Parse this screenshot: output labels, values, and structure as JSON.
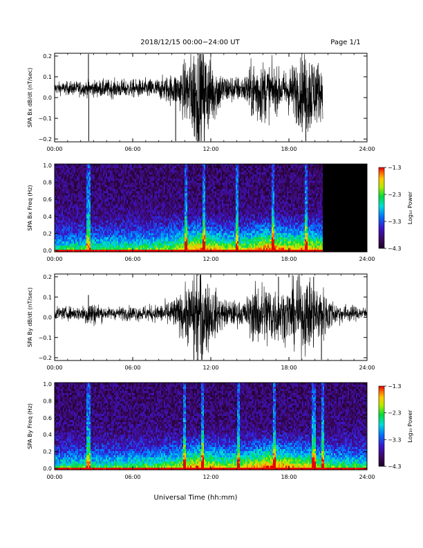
{
  "header": {
    "title": "2018/12/15  00:00−24:00 UT",
    "page": "Page 1/1"
  },
  "xlabel": "Universal Time (hh:mm)",
  "colorbar_label": "Log₁₀ Power",
  "colorbar_ticks": [
    "−1.3",
    "−2.3",
    "−3.3",
    "−4.3"
  ],
  "colors": {
    "background": "#ffffff",
    "trace": "#000000",
    "no_data": "#000000"
  },
  "chart_data": [
    {
      "type": "line",
      "ylabel": "SPA Bx dB/dt (nT/sec)",
      "x_ticks": [
        "00:00",
        "06:00",
        "12:00",
        "18:00",
        "24:00"
      ],
      "y_ticks": [
        "0.2",
        "0.1",
        "0.0",
        "−0.1",
        "−0.2"
      ],
      "xlim": [
        0,
        24
      ],
      "ylim": [
        -0.2,
        0.2
      ],
      "data_end_hour": 20.6,
      "baseline": 0.045,
      "activity": [
        {
          "h": 0,
          "a": 0.02
        },
        {
          "h": 2,
          "a": 0.025
        },
        {
          "h": 4,
          "a": 0.03
        },
        {
          "h": 6,
          "a": 0.03
        },
        {
          "h": 8,
          "a": 0.035
        },
        {
          "h": 9.5,
          "a": 0.06
        },
        {
          "h": 10,
          "a": 0.1
        },
        {
          "h": 11,
          "a": 0.2
        },
        {
          "h": 12,
          "a": 0.12
        },
        {
          "h": 13,
          "a": 0.05
        },
        {
          "h": 14.5,
          "a": 0.04
        },
        {
          "h": 15.5,
          "a": 0.12
        },
        {
          "h": 16.5,
          "a": 0.09
        },
        {
          "h": 17.5,
          "a": 0.06
        },
        {
          "h": 18.5,
          "a": 0.1
        },
        {
          "h": 19.5,
          "a": 0.15
        },
        {
          "h": 20.6,
          "a": 0.08
        }
      ],
      "spikes": [
        {
          "h": 2.6,
          "v": 0.22
        },
        {
          "h": 2.62,
          "v": -0.22
        },
        {
          "h": 9.3,
          "v": -0.21
        },
        {
          "h": 11.2,
          "v": 0.22
        },
        {
          "h": 11.5,
          "v": -0.22
        },
        {
          "h": 19.3,
          "v": -0.22
        }
      ]
    },
    {
      "type": "heatmap",
      "ylabel": "SPA Bx Freq (Hz)",
      "x_ticks": [
        "00:00",
        "06:00",
        "12:00",
        "18:00",
        "24:00"
      ],
      "y_ticks": [
        "1.0",
        "0.8",
        "0.6",
        "0.4",
        "0.2",
        "0.0"
      ],
      "xlim": [
        0,
        24
      ],
      "ylim": [
        0,
        1.0
      ],
      "zlim": [
        -4.3,
        -1.3
      ],
      "data_end_hour": 20.6,
      "activity": [
        {
          "h": 0,
          "a": 0.1
        },
        {
          "h": 2,
          "a": 0.15
        },
        {
          "h": 4,
          "a": 0.2
        },
        {
          "h": 6,
          "a": 0.2
        },
        {
          "h": 8,
          "a": 0.25
        },
        {
          "h": 9.5,
          "a": 0.4
        },
        {
          "h": 10,
          "a": 0.55
        },
        {
          "h": 11,
          "a": 0.75
        },
        {
          "h": 12,
          "a": 0.6
        },
        {
          "h": 13,
          "a": 0.4
        },
        {
          "h": 14.5,
          "a": 0.4
        },
        {
          "h": 15.5,
          "a": 0.6
        },
        {
          "h": 16.5,
          "a": 0.8
        },
        {
          "h": 17.5,
          "a": 0.65
        },
        {
          "h": 18.5,
          "a": 0.55
        },
        {
          "h": 19.5,
          "a": 0.6
        },
        {
          "h": 20.6,
          "a": 0.5
        }
      ],
      "vertical_streaks": [
        2.6,
        10.1,
        11.5,
        14.0,
        16.8,
        19.3
      ]
    },
    {
      "type": "line",
      "ylabel": "SPA By dB/dt (nT/sec)",
      "x_ticks": [
        "00:00",
        "06:00",
        "12:00",
        "18:00",
        "24:00"
      ],
      "y_ticks": [
        "0.2",
        "0.1",
        "0.0",
        "−0.1",
        "−0.2"
      ],
      "xlim": [
        0,
        24
      ],
      "ylim": [
        -0.2,
        0.2
      ],
      "data_end_hour": 24,
      "baseline": 0.02,
      "activity": [
        {
          "h": 0,
          "a": 0.02
        },
        {
          "h": 2,
          "a": 0.025
        },
        {
          "h": 2.6,
          "a": 0.05
        },
        {
          "h": 4,
          "a": 0.02
        },
        {
          "h": 6,
          "a": 0.025
        },
        {
          "h": 8,
          "a": 0.03
        },
        {
          "h": 9.5,
          "a": 0.06
        },
        {
          "h": 10.5,
          "a": 0.12
        },
        {
          "h": 11,
          "a": 0.2
        },
        {
          "h": 12,
          "a": 0.1
        },
        {
          "h": 13,
          "a": 0.05
        },
        {
          "h": 14.5,
          "a": 0.04
        },
        {
          "h": 15.5,
          "a": 0.11
        },
        {
          "h": 16.5,
          "a": 0.12
        },
        {
          "h": 17.5,
          "a": 0.08
        },
        {
          "h": 18.5,
          "a": 0.12
        },
        {
          "h": 19.5,
          "a": 0.13
        },
        {
          "h": 20.5,
          "a": 0.1
        },
        {
          "h": 21.5,
          "a": 0.04
        },
        {
          "h": 22.5,
          "a": 0.03
        },
        {
          "h": 24,
          "a": 0.02
        }
      ],
      "spikes": [
        {
          "h": 2.6,
          "v": 0.11
        },
        {
          "h": 10.7,
          "v": -0.22
        },
        {
          "h": 11.3,
          "v": -0.22
        },
        {
          "h": 17.2,
          "v": 0.2
        },
        {
          "h": 18.7,
          "v": 0.2
        },
        {
          "h": 19.9,
          "v": 0.2
        },
        {
          "h": 20.5,
          "v": -0.22
        }
      ]
    },
    {
      "type": "heatmap",
      "ylabel": "SPA By Freq (Hz)",
      "x_ticks": [
        "00:00",
        "06:00",
        "12:00",
        "18:00",
        "24:00"
      ],
      "y_ticks": [
        "1.0",
        "0.8",
        "0.6",
        "0.4",
        "0.2",
        "0.0"
      ],
      "xlim": [
        0,
        24
      ],
      "ylim": [
        0,
        1.0
      ],
      "zlim": [
        -4.3,
        -1.3
      ],
      "data_end_hour": 24,
      "activity": [
        {
          "h": 0,
          "a": 0.1
        },
        {
          "h": 2,
          "a": 0.15
        },
        {
          "h": 4,
          "a": 0.15
        },
        {
          "h": 6,
          "a": 0.2
        },
        {
          "h": 8,
          "a": 0.25
        },
        {
          "h": 9.5,
          "a": 0.4
        },
        {
          "h": 10,
          "a": 0.55
        },
        {
          "h": 11,
          "a": 0.7
        },
        {
          "h": 12,
          "a": 0.55
        },
        {
          "h": 13,
          "a": 0.45
        },
        {
          "h": 14.5,
          "a": 0.45
        },
        {
          "h": 15.5,
          "a": 0.6
        },
        {
          "h": 16.5,
          "a": 0.8
        },
        {
          "h": 17.5,
          "a": 0.7
        },
        {
          "h": 18.5,
          "a": 0.55
        },
        {
          "h": 19.5,
          "a": 0.5
        },
        {
          "h": 20.5,
          "a": 0.4
        },
        {
          "h": 21.5,
          "a": 0.25
        },
        {
          "h": 22.5,
          "a": 0.2
        },
        {
          "h": 24,
          "a": 0.15
        }
      ],
      "vertical_streaks": [
        2.6,
        10.0,
        11.4,
        14.1,
        16.9,
        19.9,
        20.6
      ]
    }
  ]
}
